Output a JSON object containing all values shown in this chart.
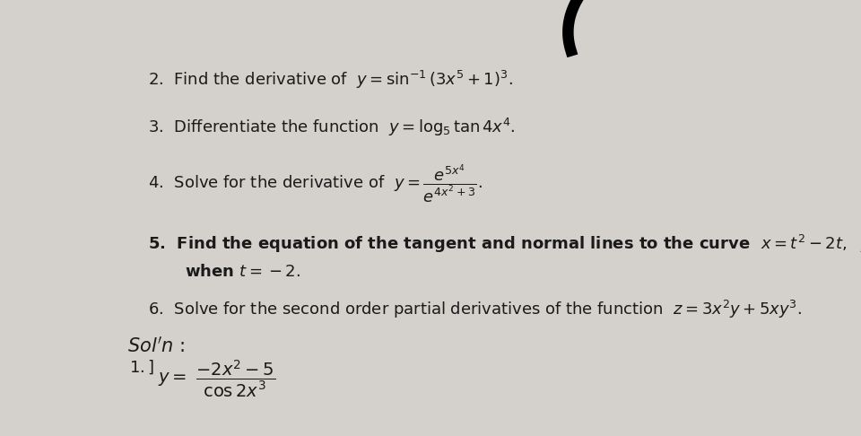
{
  "background_color": "#d4d0cb",
  "paper_color": "#e8e5e0",
  "text_color": "#1a1a1a",
  "fs": 13
}
